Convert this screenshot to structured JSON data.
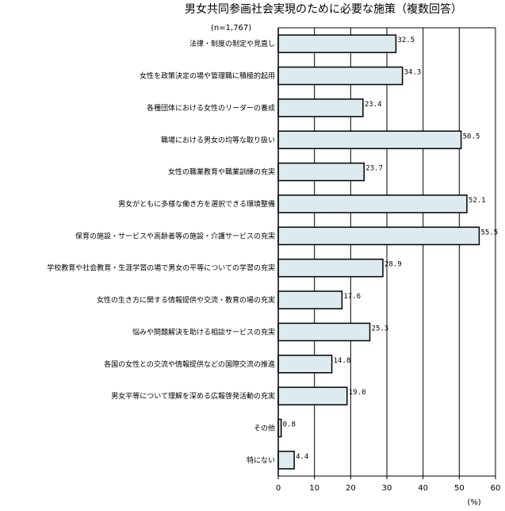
{
  "chart_data": {
    "type": "bar",
    "orientation": "horizontal",
    "title": "男女共同参画社会実現のために必要な施策（複数回答）",
    "sample_size": "(n=1,767)",
    "unit": "(%)",
    "xlim": [
      0,
      60
    ],
    "ticks": [
      "0",
      "10",
      "20",
      "30",
      "40",
      "50",
      "60"
    ],
    "grid": "vertical",
    "bar_color": "#dcebf0",
    "categories": [
      "法律・制度の制定や見直し",
      "女性を政策決定の場や管理職に積極的起用",
      "各種団体における女性のリーダーの養成",
      "職場における男女の均等な取り扱い",
      "女性の職業教育や職業訓練の充実",
      "男女がともに多様な働き方を選択できる環境整備",
      "保育の施設・サービスや高齢者等の施設・介護サービスの充実",
      "学校教育や社会教育・生涯学習の場で男女の平等についての学習の充実",
      "女性の生き方に関する情報提供や交流・教育の場の充実",
      "悩みや問題解決を助ける相談サービスの充実",
      "各国の女性との交流や情報提供などの国際交流の推進",
      "男女平等について理解を深める広報啓発活動の充実",
      "その他",
      "特にない"
    ],
    "values": [
      32.5,
      34.3,
      23.4,
      50.5,
      23.7,
      52.1,
      55.5,
      28.9,
      17.6,
      25.3,
      14.8,
      19.0,
      0.8,
      4.4
    ],
    "value_labels": [
      "32.5",
      "34.3",
      "23.4",
      "50.5",
      "23.7",
      "52.1",
      "55.5",
      "28.9",
      "17.6",
      "25.3",
      "14.8",
      "19.0",
      "0.8",
      "4.4"
    ]
  }
}
